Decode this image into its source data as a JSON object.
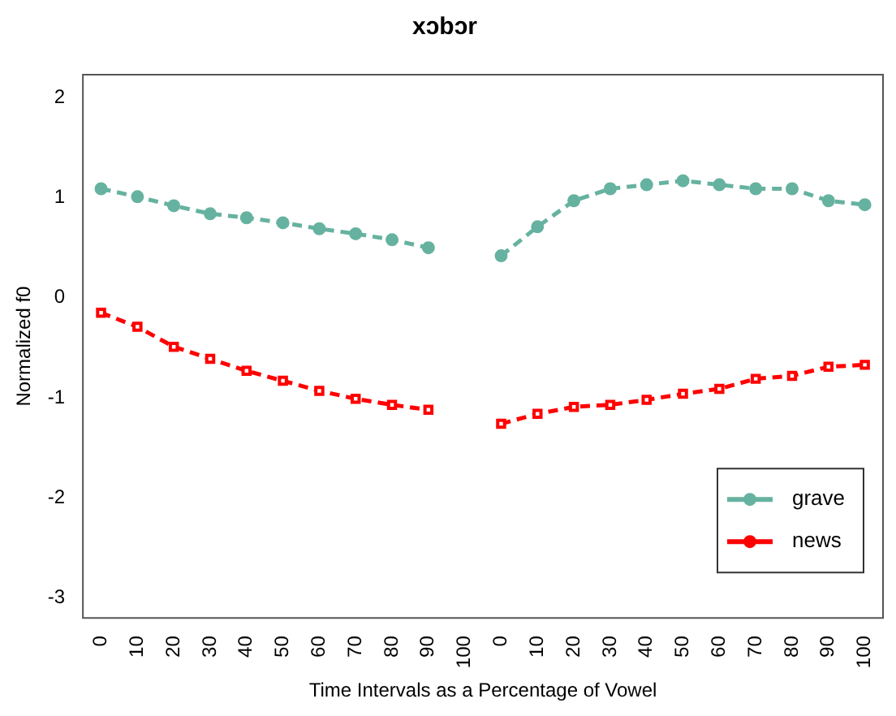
{
  "chart_data": {
    "type": "line",
    "title": "xɔbɔr",
    "xlabel": "Time Intervals as a Percentage of Vowel",
    "ylabel": "Normalized f0",
    "categories": [
      "0",
      "10",
      "20",
      "30",
      "40",
      "50",
      "60",
      "70",
      "80",
      "90",
      "100",
      "0",
      "10",
      "20",
      "30",
      "40",
      "50",
      "60",
      "70",
      "80",
      "90",
      "100"
    ],
    "series": [
      {
        "name": "grave",
        "color": "#66b2a0",
        "marker": "circle",
        "values": [
          1.09,
          1.01,
          0.92,
          0.84,
          0.8,
          0.75,
          0.69,
          0.64,
          0.58,
          0.5,
          null,
          0.42,
          0.71,
          0.97,
          1.09,
          1.13,
          1.17,
          1.13,
          1.09,
          1.09,
          0.97,
          0.93
        ]
      },
      {
        "name": "news",
        "color": "#ff0000",
        "marker": "square",
        "values": [
          -0.15,
          -0.29,
          -0.49,
          -0.61,
          -0.73,
          -0.83,
          -0.93,
          -1.01,
          -1.07,
          -1.12,
          null,
          -1.26,
          -1.16,
          -1.09,
          -1.07,
          -1.02,
          -0.96,
          -0.91,
          -0.81,
          -0.78,
          -0.69,
          -0.67
        ]
      }
    ],
    "ylim": [
      -3.2,
      2.23
    ],
    "yticks": [
      -3,
      -2,
      -1,
      0,
      1,
      2
    ],
    "grid": false,
    "legend": "bottom right",
    "line_style": "dashed"
  }
}
